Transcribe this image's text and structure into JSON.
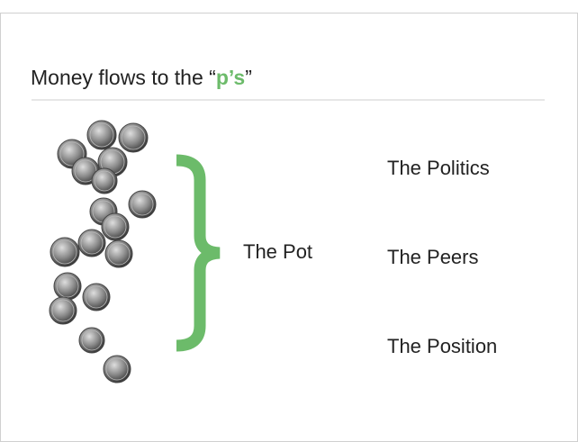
{
  "title": {
    "parts": [
      "Money flows to the “",
      "p’s",
      "”"
    ]
  },
  "center_label": "The Pot",
  "items": [
    "The Politics",
    "The Peers",
    "The Position"
  ]
}
